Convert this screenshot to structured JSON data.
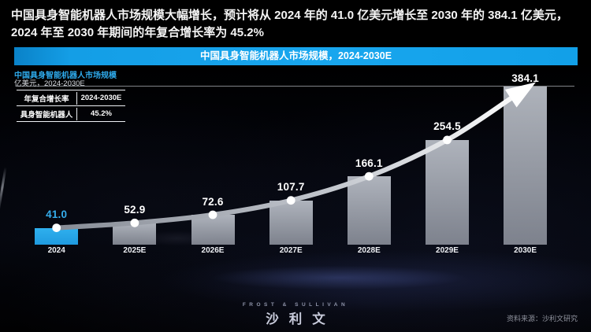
{
  "page": {
    "headline": "中国具身智能机器人市场规模大幅增长，预计将从 2024 年的 41.0 亿美元增长至 2030 年的 384.1 亿美元，2024 年至 2030 年期间的年复合增长率为 45.2%"
  },
  "banner": {
    "title": "中国具身智能机器人市场规模，2024-2030E",
    "bg_color": "#149ee6"
  },
  "chart_data": {
    "type": "bar",
    "title": "中国具身智能机器人市场规模",
    "subtitle": "亿美元，2024-2030E",
    "unit": "亿美元",
    "categories": [
      "2024",
      "2025E",
      "2026E",
      "2027E",
      "2028E",
      "2029E",
      "2030E"
    ],
    "values": [
      41.0,
      52.9,
      72.6,
      107.7,
      166.1,
      254.5,
      384.1
    ],
    "highlight_index": 0,
    "ylim": [
      0,
      400
    ],
    "grid": false,
    "legend_position": "none",
    "trend_annotation": "ascending-arrow-curve-through-bar-tops",
    "cagr_table": {
      "header": [
        "年复合增长率",
        "2024-2030E"
      ],
      "rows": [
        [
          "具身智能机器人",
          "45.2%"
        ]
      ]
    },
    "colors": {
      "highlight_bar": "#28a8e6",
      "bar": "#a9aeb8",
      "highlight_label": "#35adec",
      "label": "#ffffff",
      "trend_line_start": "#878c96",
      "trend_line_end": "#ffffff"
    }
  },
  "footer": {
    "logo_top": "FROST & SULLIVAN",
    "logo_main": "沙利文",
    "source": "资料来源：沙利文研究"
  }
}
